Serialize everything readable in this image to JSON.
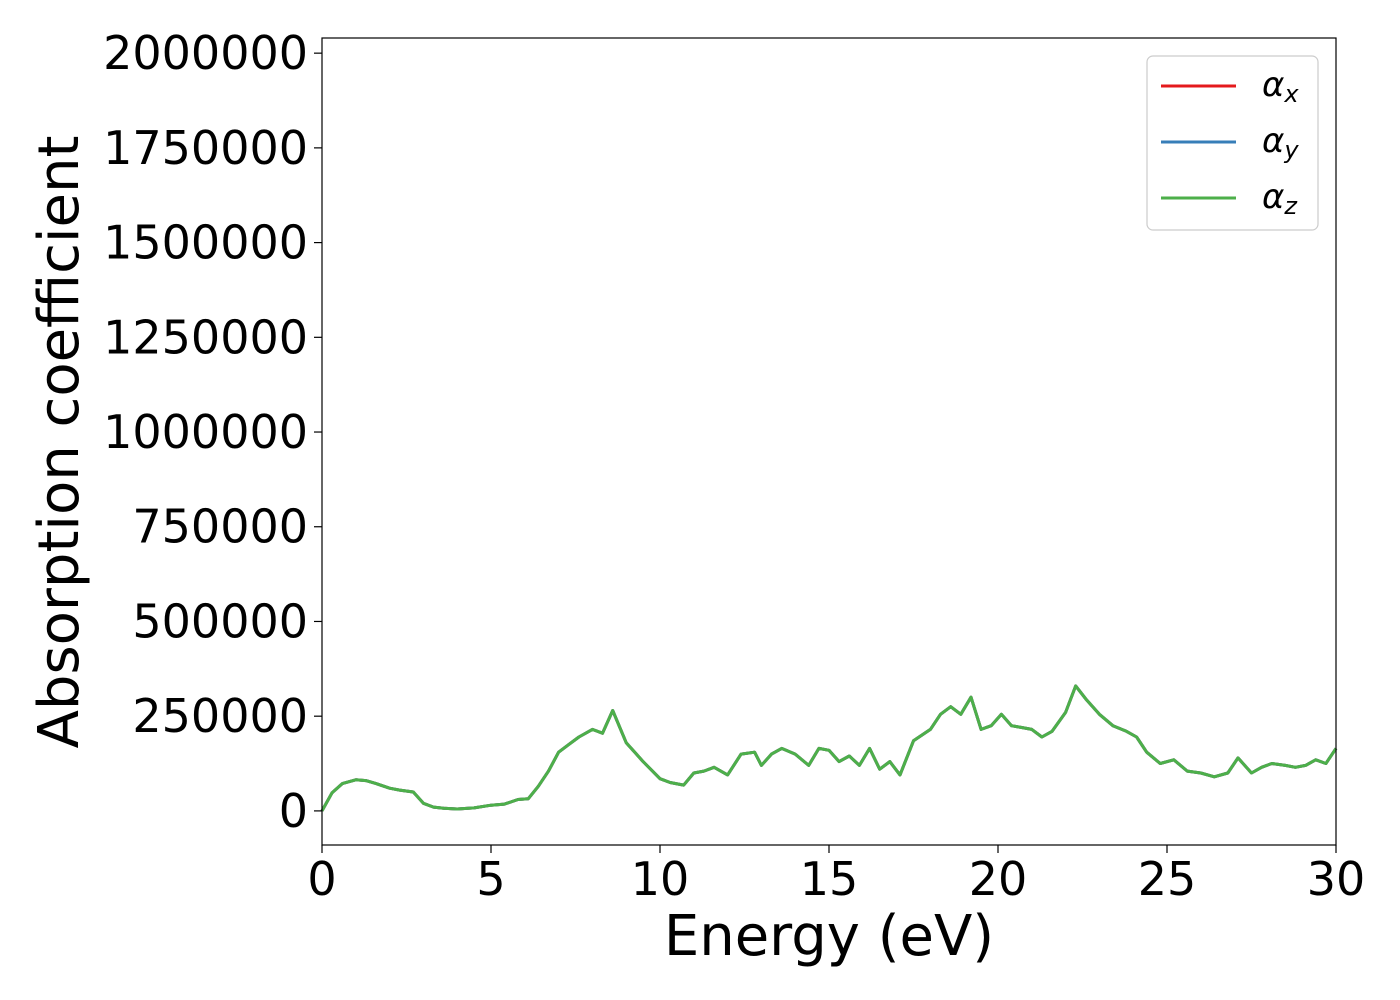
{
  "chart_data": {
    "type": "line",
    "title": "",
    "xlabel": "Energy (eV)",
    "ylabel": "Absorption coefficient",
    "xlim": [
      0,
      30
    ],
    "ylim": [
      -90000,
      2040000
    ],
    "xticks": [
      0,
      5,
      10,
      15,
      20,
      25,
      30
    ],
    "xtick_labels": [
      "0",
      "5",
      "10",
      "15",
      "20",
      "25",
      "30"
    ],
    "yticks": [
      0,
      250000,
      500000,
      750000,
      1000000,
      1250000,
      1500000,
      1750000,
      2000000
    ],
    "ytick_labels": [
      "0",
      "250000",
      "500000",
      "750000",
      "1000000",
      "1250000",
      "1500000",
      "1750000",
      "2000000"
    ],
    "grid": false,
    "legend_position": "top-right",
    "x": [
      0,
      0.3,
      0.6,
      1.0,
      1.3,
      1.6,
      2.0,
      2.3,
      2.7,
      3.0,
      3.3,
      3.6,
      4.0,
      4.5,
      5.0,
      5.4,
      5.8,
      6.1,
      6.4,
      6.7,
      7.0,
      7.3,
      7.6,
      8.0,
      8.3,
      8.6,
      9.0,
      9.5,
      10.0,
      10.3,
      10.7,
      11.0,
      11.3,
      11.6,
      12.0,
      12.4,
      12.8,
      13.0,
      13.3,
      13.6,
      14.0,
      14.4,
      14.7,
      15.0,
      15.3,
      15.6,
      15.9,
      16.2,
      16.5,
      16.8,
      17.1,
      17.5,
      18.0,
      18.3,
      18.6,
      18.9,
      19.2,
      19.5,
      19.8,
      20.1,
      20.4,
      20.7,
      21.0,
      21.3,
      21.6,
      22.0,
      22.3,
      22.6,
      23.0,
      23.4,
      23.8,
      24.1,
      24.4,
      24.8,
      25.2,
      25.6,
      26.0,
      26.4,
      26.8,
      27.1,
      27.5,
      27.8,
      28.1,
      28.5,
      28.8,
      29.1,
      29.4,
      29.7,
      30.0
    ],
    "series": [
      {
        "name": "αx",
        "color": "#e41a1c",
        "values": [
          0,
          48000,
          72000,
          82000,
          80000,
          72000,
          60000,
          55000,
          50000,
          20000,
          10000,
          7000,
          5000,
          8000,
          15000,
          18000,
          30000,
          32000,
          65000,
          105000,
          155000,
          175000,
          195000,
          215000,
          205000,
          265000,
          180000,
          130000,
          85000,
          75000,
          68000,
          100000,
          105000,
          115000,
          95000,
          150000,
          155000,
          120000,
          150000,
          165000,
          150000,
          120000,
          165000,
          160000,
          130000,
          145000,
          120000,
          165000,
          110000,
          130000,
          95000,
          185000,
          215000,
          255000,
          275000,
          255000,
          300000,
          215000,
          225000,
          255000,
          225000,
          220000,
          215000,
          195000,
          210000,
          260000,
          330000,
          295000,
          255000,
          225000,
          210000,
          195000,
          155000,
          125000,
          135000,
          105000,
          100000,
          90000,
          100000,
          140000,
          100000,
          115000,
          125000,
          120000,
          115000,
          120000,
          135000,
          125000,
          165000
        ]
      },
      {
        "name": "αy",
        "color": "#377eb8",
        "values": [
          0,
          48000,
          72000,
          82000,
          80000,
          72000,
          60000,
          55000,
          50000,
          20000,
          10000,
          7000,
          5000,
          8000,
          15000,
          18000,
          30000,
          32000,
          65000,
          105000,
          155000,
          175000,
          195000,
          215000,
          205000,
          265000,
          180000,
          130000,
          85000,
          75000,
          68000,
          100000,
          105000,
          115000,
          95000,
          150000,
          155000,
          120000,
          150000,
          165000,
          150000,
          120000,
          165000,
          160000,
          130000,
          145000,
          120000,
          165000,
          110000,
          130000,
          95000,
          185000,
          215000,
          255000,
          275000,
          255000,
          300000,
          215000,
          225000,
          255000,
          225000,
          220000,
          215000,
          195000,
          210000,
          260000,
          330000,
          295000,
          255000,
          225000,
          210000,
          195000,
          155000,
          125000,
          135000,
          105000,
          100000,
          90000,
          100000,
          140000,
          100000,
          115000,
          125000,
          120000,
          115000,
          120000,
          135000,
          125000,
          165000
        ]
      },
      {
        "name": "αz",
        "color": "#4daf4a",
        "values": [
          0,
          48000,
          72000,
          82000,
          80000,
          72000,
          60000,
          55000,
          50000,
          20000,
          10000,
          7000,
          5000,
          8000,
          15000,
          18000,
          30000,
          32000,
          65000,
          105000,
          155000,
          175000,
          195000,
          215000,
          205000,
          265000,
          180000,
          130000,
          85000,
          75000,
          68000,
          100000,
          105000,
          115000,
          95000,
          150000,
          155000,
          120000,
          150000,
          165000,
          150000,
          120000,
          165000,
          160000,
          130000,
          145000,
          120000,
          165000,
          110000,
          130000,
          95000,
          185000,
          215000,
          255000,
          275000,
          255000,
          300000,
          215000,
          225000,
          255000,
          225000,
          220000,
          215000,
          195000,
          210000,
          260000,
          330000,
          295000,
          255000,
          225000,
          210000,
          195000,
          155000,
          125000,
          135000,
          105000,
          100000,
          90000,
          100000,
          140000,
          100000,
          115000,
          125000,
          120000,
          115000,
          120000,
          135000,
          125000,
          165000
        ]
      }
    ],
    "legend": [
      {
        "symbol": "α",
        "subscript": "x",
        "color": "#e41a1c"
      },
      {
        "symbol": "α",
        "subscript": "y",
        "color": "#377eb8"
      },
      {
        "symbol": "α",
        "subscript": "z",
        "color": "#4daf4a"
      }
    ]
  }
}
